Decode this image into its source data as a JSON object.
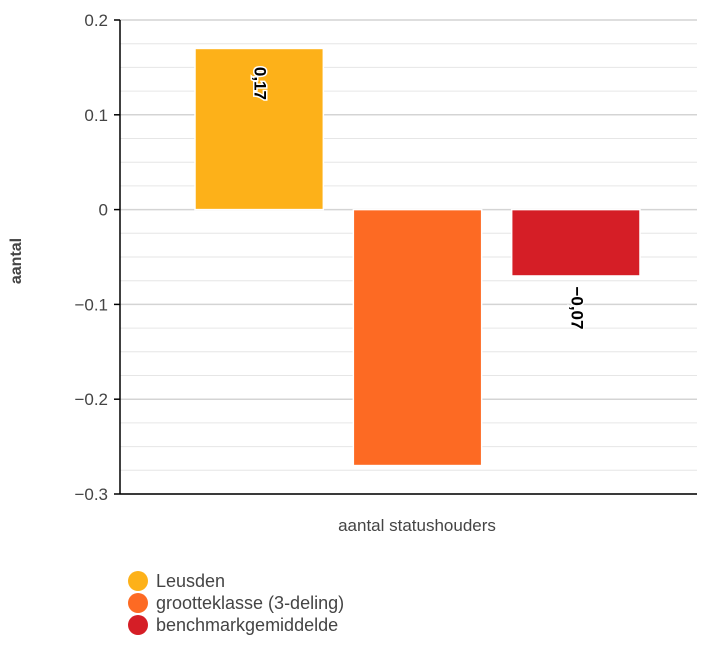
{
  "chart_data": {
    "type": "bar",
    "categories": [
      "aantal statushouders"
    ],
    "xlabel": "aantal statushouders",
    "ylabel": "aantal",
    "ylim": [
      -0.3,
      0.2
    ],
    "yticks": [
      0.2,
      0.1,
      0,
      -0.1,
      -0.2,
      -0.3
    ],
    "ytick_labels": [
      "0.2",
      "0.1",
      "0",
      "−0.1",
      "−0.2",
      "−0.3"
    ],
    "grid": true,
    "legend_position": "bottom-left",
    "series": [
      {
        "name": "Leusden",
        "values": [
          0.17
        ],
        "label": "0,17",
        "color": "#FDB119"
      },
      {
        "name": "grootteklasse (3-deling)",
        "values": [
          -0.27
        ],
        "label": "",
        "color": "#FD6A23"
      },
      {
        "name": "benchmarkgemiddelde",
        "values": [
          -0.07
        ],
        "label": "−0,07",
        "color": "#D51E26"
      }
    ]
  }
}
